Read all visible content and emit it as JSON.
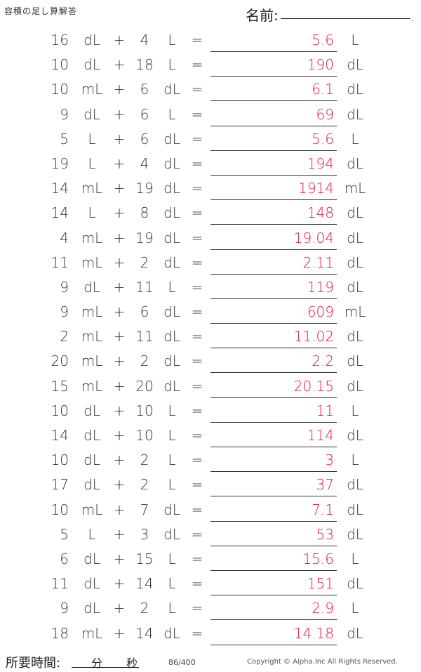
{
  "header": {
    "title": "容積の足し算解答",
    "name_label": "名前:",
    "name_dot": "."
  },
  "operators": {
    "plus": "+",
    "equals": "="
  },
  "rows": [
    {
      "a": "16",
      "a_unit": "dL",
      "b": "4",
      "b_unit": "L",
      "answer": "5.6",
      "answer_unit": "L"
    },
    {
      "a": "10",
      "a_unit": "dL",
      "b": "18",
      "b_unit": "L",
      "answer": "190",
      "answer_unit": "dL"
    },
    {
      "a": "10",
      "a_unit": "mL",
      "b": "6",
      "b_unit": "dL",
      "answer": "6.1",
      "answer_unit": "dL"
    },
    {
      "a": "9",
      "a_unit": "dL",
      "b": "6",
      "b_unit": "L",
      "answer": "69",
      "answer_unit": "dL"
    },
    {
      "a": "5",
      "a_unit": "L",
      "b": "6",
      "b_unit": "dL",
      "answer": "5.6",
      "answer_unit": "L"
    },
    {
      "a": "19",
      "a_unit": "L",
      "b": "4",
      "b_unit": "dL",
      "answer": "194",
      "answer_unit": "dL"
    },
    {
      "a": "14",
      "a_unit": "mL",
      "b": "19",
      "b_unit": "dL",
      "answer": "1914",
      "answer_unit": "mL"
    },
    {
      "a": "14",
      "a_unit": "L",
      "b": "8",
      "b_unit": "dL",
      "answer": "148",
      "answer_unit": "dL"
    },
    {
      "a": "4",
      "a_unit": "mL",
      "b": "19",
      "b_unit": "dL",
      "answer": "19.04",
      "answer_unit": "dL"
    },
    {
      "a": "11",
      "a_unit": "mL",
      "b": "2",
      "b_unit": "dL",
      "answer": "2.11",
      "answer_unit": "dL"
    },
    {
      "a": "9",
      "a_unit": "dL",
      "b": "11",
      "b_unit": "L",
      "answer": "119",
      "answer_unit": "dL"
    },
    {
      "a": "9",
      "a_unit": "mL",
      "b": "6",
      "b_unit": "dL",
      "answer": "609",
      "answer_unit": "mL"
    },
    {
      "a": "2",
      "a_unit": "mL",
      "b": "11",
      "b_unit": "dL",
      "answer": "11.02",
      "answer_unit": "dL"
    },
    {
      "a": "20",
      "a_unit": "mL",
      "b": "2",
      "b_unit": "dL",
      "answer": "2.2",
      "answer_unit": "dL"
    },
    {
      "a": "15",
      "a_unit": "mL",
      "b": "20",
      "b_unit": "dL",
      "answer": "20.15",
      "answer_unit": "dL"
    },
    {
      "a": "10",
      "a_unit": "dL",
      "b": "10",
      "b_unit": "L",
      "answer": "11",
      "answer_unit": "L"
    },
    {
      "a": "14",
      "a_unit": "dL",
      "b": "10",
      "b_unit": "L",
      "answer": "114",
      "answer_unit": "dL"
    },
    {
      "a": "10",
      "a_unit": "dL",
      "b": "2",
      "b_unit": "L",
      "answer": "3",
      "answer_unit": "L"
    },
    {
      "a": "17",
      "a_unit": "dL",
      "b": "2",
      "b_unit": "L",
      "answer": "37",
      "answer_unit": "dL"
    },
    {
      "a": "10",
      "a_unit": "mL",
      "b": "7",
      "b_unit": "dL",
      "answer": "7.1",
      "answer_unit": "dL"
    },
    {
      "a": "5",
      "a_unit": "L",
      "b": "3",
      "b_unit": "dL",
      "answer": "53",
      "answer_unit": "dL"
    },
    {
      "a": "6",
      "a_unit": "dL",
      "b": "15",
      "b_unit": "L",
      "answer": "15.6",
      "answer_unit": "L"
    },
    {
      "a": "11",
      "a_unit": "dL",
      "b": "14",
      "b_unit": "L",
      "answer": "151",
      "answer_unit": "dL"
    },
    {
      "a": "9",
      "a_unit": "dL",
      "b": "2",
      "b_unit": "L",
      "answer": "2.9",
      "answer_unit": "L"
    },
    {
      "a": "18",
      "a_unit": "mL",
      "b": "14",
      "b_unit": "dL",
      "answer": "14.18",
      "answer_unit": "dL"
    }
  ],
  "footer": {
    "time_label": "所要時間:",
    "minutes_label": "分",
    "seconds_label": "秒",
    "page_number": "86/400",
    "copyright": "Copyright © Alpha.Inc All Rights Reserved."
  },
  "colors": {
    "answer": "#e0143c"
  }
}
